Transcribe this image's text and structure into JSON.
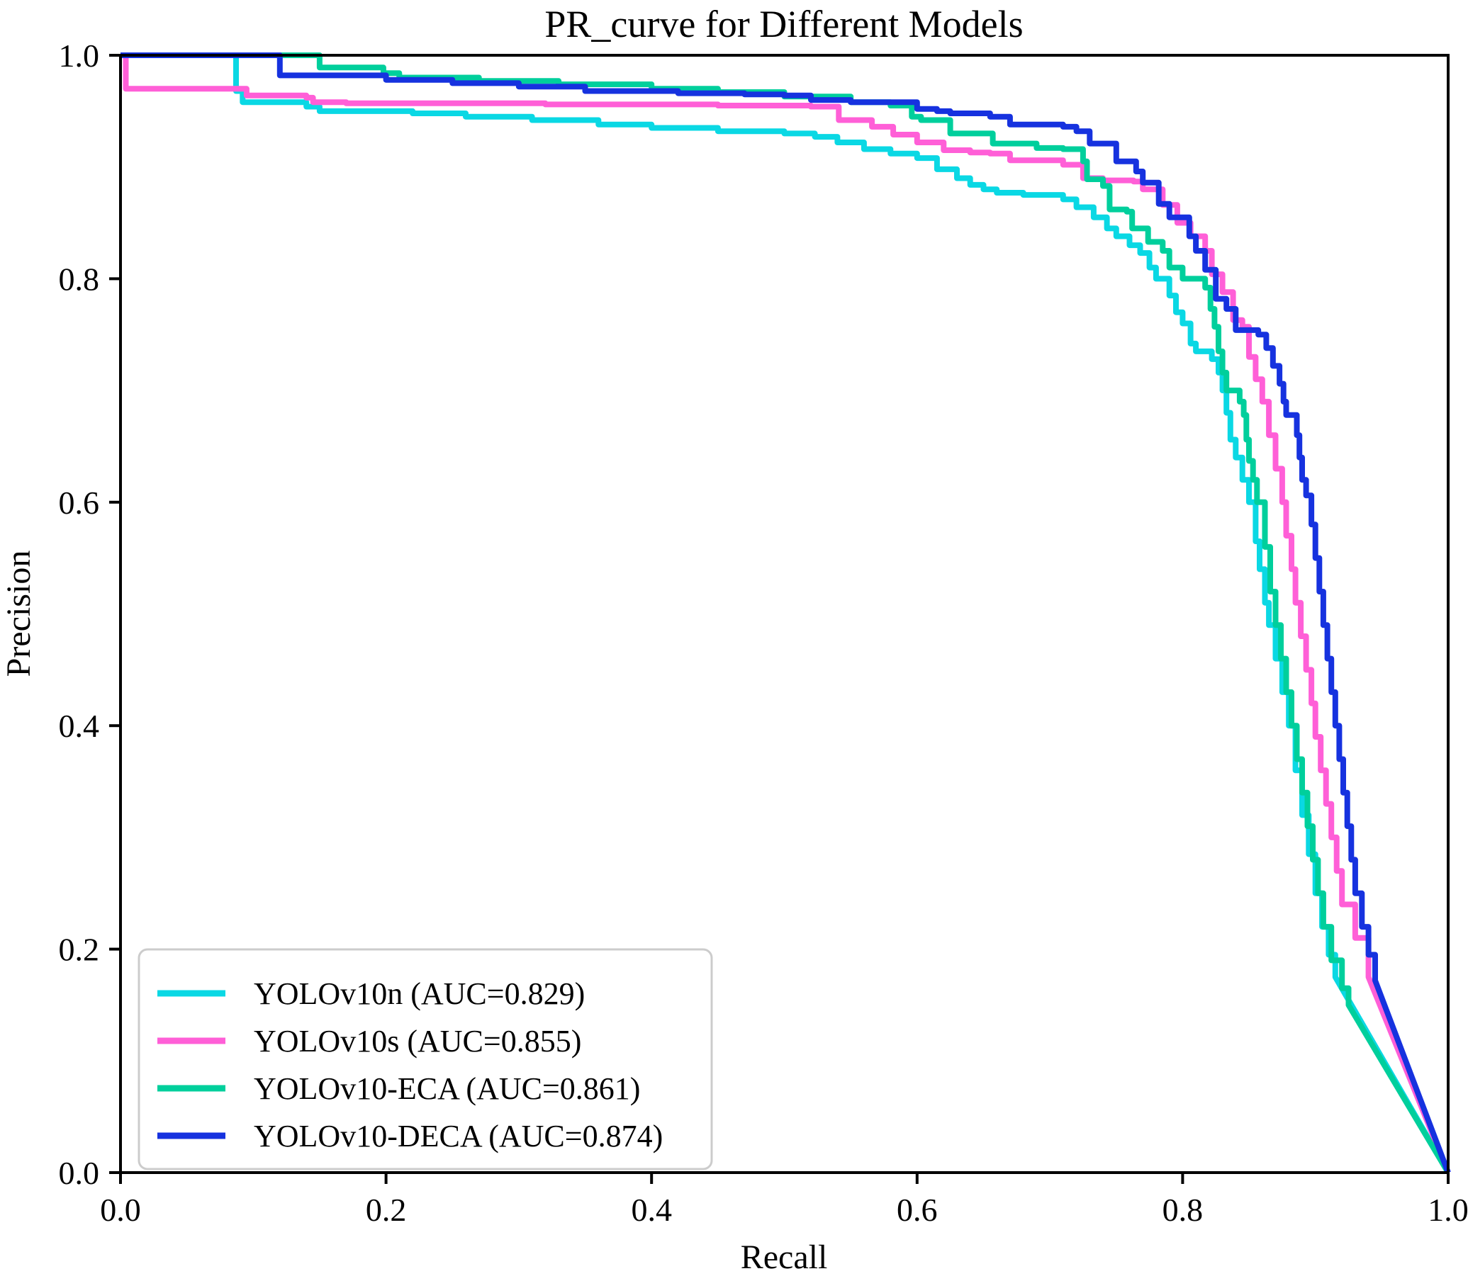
{
  "chart": {
    "title": "PR_curve for Different Models",
    "xlabel": "Recall",
    "ylabel": "Precision"
  },
  "chart_data": {
    "type": "line",
    "title": "PR_curve for Different Models",
    "xlabel": "Recall",
    "ylabel": "Precision",
    "xlim": [
      0.0,
      1.0
    ],
    "ylim": [
      0.0,
      1.0
    ],
    "x_ticks": [
      {
        "v": 0.0,
        "label": "0.0"
      },
      {
        "v": 0.2,
        "label": "0.2"
      },
      {
        "v": 0.4,
        "label": "0.4"
      },
      {
        "v": 0.6,
        "label": "0.6"
      },
      {
        "v": 0.8,
        "label": "0.8"
      },
      {
        "v": 1.0,
        "label": "1.0"
      }
    ],
    "y_ticks": [
      {
        "v": 0.0,
        "label": "0.0"
      },
      {
        "v": 0.2,
        "label": "0.2"
      },
      {
        "v": 0.4,
        "label": "0.4"
      },
      {
        "v": 0.6,
        "label": "0.6"
      },
      {
        "v": 0.8,
        "label": "0.8"
      },
      {
        "v": 1.0,
        "label": "1.0"
      }
    ],
    "grid": false,
    "legend_position": "lower-left",
    "series": [
      {
        "name": "YOLOv10n (AUC=0.829)",
        "color": "#0ad8e4",
        "auc": 0.829,
        "tail_start": 0.915,
        "points": [
          [
            0.0,
            1.0
          ],
          [
            0.085,
            1.0
          ],
          [
            0.087,
            0.968
          ],
          [
            0.092,
            0.958
          ],
          [
            0.14,
            0.954
          ],
          [
            0.15,
            0.95
          ],
          [
            0.22,
            0.948
          ],
          [
            0.26,
            0.945
          ],
          [
            0.31,
            0.942
          ],
          [
            0.36,
            0.938
          ],
          [
            0.4,
            0.935
          ],
          [
            0.45,
            0.932
          ],
          [
            0.5,
            0.93
          ],
          [
            0.523,
            0.927
          ],
          [
            0.54,
            0.922
          ],
          [
            0.56,
            0.916
          ],
          [
            0.58,
            0.912
          ],
          [
            0.6,
            0.908
          ],
          [
            0.615,
            0.898
          ],
          [
            0.63,
            0.89
          ],
          [
            0.64,
            0.884
          ],
          [
            0.65,
            0.88
          ],
          [
            0.66,
            0.877
          ],
          [
            0.68,
            0.875
          ],
          [
            0.71,
            0.871
          ],
          [
            0.72,
            0.864
          ],
          [
            0.733,
            0.855
          ],
          [
            0.743,
            0.845
          ],
          [
            0.75,
            0.838
          ],
          [
            0.76,
            0.83
          ],
          [
            0.768,
            0.823
          ],
          [
            0.775,
            0.81
          ],
          [
            0.78,
            0.8
          ],
          [
            0.79,
            0.785
          ],
          [
            0.795,
            0.77
          ],
          [
            0.8,
            0.76
          ],
          [
            0.806,
            0.742
          ],
          [
            0.81,
            0.735
          ],
          [
            0.822,
            0.728
          ],
          [
            0.827,
            0.716
          ],
          [
            0.83,
            0.7
          ],
          [
            0.833,
            0.68
          ],
          [
            0.836,
            0.656
          ],
          [
            0.84,
            0.64
          ],
          [
            0.845,
            0.62
          ],
          [
            0.85,
            0.6
          ],
          [
            0.855,
            0.565
          ],
          [
            0.858,
            0.54
          ],
          [
            0.862,
            0.51
          ],
          [
            0.865,
            0.49
          ],
          [
            0.87,
            0.46
          ],
          [
            0.875,
            0.43
          ],
          [
            0.88,
            0.4
          ],
          [
            0.885,
            0.36
          ],
          [
            0.89,
            0.32
          ],
          [
            0.895,
            0.285
          ],
          [
            0.9,
            0.25
          ],
          [
            0.905,
            0.22
          ],
          [
            0.91,
            0.195
          ],
          [
            0.915,
            0.175
          ],
          [
            1.0,
            0.0
          ]
        ]
      },
      {
        "name": "YOLOv10s (AUC=0.855)",
        "color": "#ff5fd7",
        "auc": 0.855,
        "tail_start": 0.94,
        "points": [
          [
            0.0,
            1.0
          ],
          [
            0.003,
            1.0
          ],
          [
            0.004,
            0.97
          ],
          [
            0.09,
            0.97
          ],
          [
            0.095,
            0.964
          ],
          [
            0.14,
            0.962
          ],
          [
            0.145,
            0.958
          ],
          [
            0.17,
            0.957
          ],
          [
            0.32,
            0.956
          ],
          [
            0.45,
            0.955
          ],
          [
            0.52,
            0.954
          ],
          [
            0.541,
            0.942
          ],
          [
            0.566,
            0.936
          ],
          [
            0.582,
            0.929
          ],
          [
            0.6,
            0.922
          ],
          [
            0.62,
            0.915
          ],
          [
            0.64,
            0.913
          ],
          [
            0.655,
            0.912
          ],
          [
            0.67,
            0.906
          ],
          [
            0.71,
            0.902
          ],
          [
            0.725,
            0.89
          ],
          [
            0.74,
            0.888
          ],
          [
            0.763,
            0.887
          ],
          [
            0.77,
            0.88
          ],
          [
            0.785,
            0.866
          ],
          [
            0.796,
            0.85
          ],
          [
            0.806,
            0.838
          ],
          [
            0.817,
            0.825
          ],
          [
            0.822,
            0.804
          ],
          [
            0.83,
            0.788
          ],
          [
            0.838,
            0.763
          ],
          [
            0.845,
            0.757
          ],
          [
            0.85,
            0.73
          ],
          [
            0.855,
            0.71
          ],
          [
            0.86,
            0.69
          ],
          [
            0.865,
            0.66
          ],
          [
            0.87,
            0.63
          ],
          [
            0.875,
            0.6
          ],
          [
            0.878,
            0.57
          ],
          [
            0.882,
            0.54
          ],
          [
            0.885,
            0.51
          ],
          [
            0.889,
            0.48
          ],
          [
            0.893,
            0.45
          ],
          [
            0.897,
            0.42
          ],
          [
            0.9,
            0.39
          ],
          [
            0.904,
            0.36
          ],
          [
            0.908,
            0.33
          ],
          [
            0.912,
            0.3
          ],
          [
            0.916,
            0.27
          ],
          [
            0.92,
            0.24
          ],
          [
            0.93,
            0.21
          ],
          [
            0.94,
            0.175
          ],
          [
            1.0,
            0.0
          ]
        ]
      },
      {
        "name": "YOLOv10-ECA (AUC=0.861)",
        "color": "#00cf9c",
        "auc": 0.861,
        "tail_start": 0.925,
        "points": [
          [
            0.0,
            1.0
          ],
          [
            0.148,
            1.0
          ],
          [
            0.15,
            0.989
          ],
          [
            0.198,
            0.984
          ],
          [
            0.21,
            0.98
          ],
          [
            0.27,
            0.977
          ],
          [
            0.33,
            0.974
          ],
          [
            0.4,
            0.97
          ],
          [
            0.45,
            0.967
          ],
          [
            0.5,
            0.963
          ],
          [
            0.55,
            0.958
          ],
          [
            0.58,
            0.955
          ],
          [
            0.596,
            0.945
          ],
          [
            0.603,
            0.942
          ],
          [
            0.625,
            0.93
          ],
          [
            0.657,
            0.921
          ],
          [
            0.69,
            0.917
          ],
          [
            0.71,
            0.916
          ],
          [
            0.725,
            0.905
          ],
          [
            0.728,
            0.889
          ],
          [
            0.74,
            0.883
          ],
          [
            0.745,
            0.862
          ],
          [
            0.758,
            0.86
          ],
          [
            0.762,
            0.845
          ],
          [
            0.774,
            0.833
          ],
          [
            0.785,
            0.825
          ],
          [
            0.79,
            0.81
          ],
          [
            0.8,
            0.8
          ],
          [
            0.817,
            0.792
          ],
          [
            0.821,
            0.773
          ],
          [
            0.824,
            0.757
          ],
          [
            0.827,
            0.735
          ],
          [
            0.83,
            0.716
          ],
          [
            0.833,
            0.7
          ],
          [
            0.843,
            0.69
          ],
          [
            0.846,
            0.678
          ],
          [
            0.848,
            0.656
          ],
          [
            0.85,
            0.637
          ],
          [
            0.853,
            0.62
          ],
          [
            0.856,
            0.6
          ],
          [
            0.862,
            0.56
          ],
          [
            0.866,
            0.52
          ],
          [
            0.87,
            0.49
          ],
          [
            0.874,
            0.46
          ],
          [
            0.878,
            0.43
          ],
          [
            0.882,
            0.4
          ],
          [
            0.886,
            0.37
          ],
          [
            0.89,
            0.34
          ],
          [
            0.894,
            0.31
          ],
          [
            0.898,
            0.28
          ],
          [
            0.902,
            0.25
          ],
          [
            0.906,
            0.22
          ],
          [
            0.912,
            0.19
          ],
          [
            0.92,
            0.165
          ],
          [
            0.925,
            0.15
          ],
          [
            1.0,
            0.0
          ]
        ]
      },
      {
        "name": "YOLOv10-DECA (AUC=0.874)",
        "color": "#1632df",
        "auc": 0.874,
        "tail_start": 0.945,
        "points": [
          [
            0.0,
            1.0
          ],
          [
            0.118,
            1.0
          ],
          [
            0.12,
            0.982
          ],
          [
            0.19,
            0.982
          ],
          [
            0.2,
            0.978
          ],
          [
            0.25,
            0.975
          ],
          [
            0.3,
            0.972
          ],
          [
            0.35,
            0.968
          ],
          [
            0.42,
            0.966
          ],
          [
            0.47,
            0.965
          ],
          [
            0.5,
            0.964
          ],
          [
            0.52,
            0.96
          ],
          [
            0.55,
            0.958
          ],
          [
            0.6,
            0.952
          ],
          [
            0.615,
            0.95
          ],
          [
            0.625,
            0.948
          ],
          [
            0.655,
            0.945
          ],
          [
            0.67,
            0.938
          ],
          [
            0.71,
            0.936
          ],
          [
            0.72,
            0.932
          ],
          [
            0.73,
            0.921
          ],
          [
            0.75,
            0.905
          ],
          [
            0.765,
            0.896
          ],
          [
            0.77,
            0.886
          ],
          [
            0.782,
            0.867
          ],
          [
            0.79,
            0.855
          ],
          [
            0.805,
            0.838
          ],
          [
            0.81,
            0.825
          ],
          [
            0.817,
            0.808
          ],
          [
            0.825,
            0.782
          ],
          [
            0.833,
            0.773
          ],
          [
            0.84,
            0.754
          ],
          [
            0.857,
            0.75
          ],
          [
            0.863,
            0.738
          ],
          [
            0.868,
            0.722
          ],
          [
            0.873,
            0.706
          ],
          [
            0.876,
            0.69
          ],
          [
            0.878,
            0.678
          ],
          [
            0.886,
            0.66
          ],
          [
            0.888,
            0.64
          ],
          [
            0.89,
            0.62
          ],
          [
            0.893,
            0.606
          ],
          [
            0.897,
            0.58
          ],
          [
            0.9,
            0.55
          ],
          [
            0.903,
            0.52
          ],
          [
            0.906,
            0.49
          ],
          [
            0.909,
            0.46
          ],
          [
            0.912,
            0.43
          ],
          [
            0.915,
            0.4
          ],
          [
            0.918,
            0.37
          ],
          [
            0.921,
            0.34
          ],
          [
            0.924,
            0.31
          ],
          [
            0.927,
            0.28
          ],
          [
            0.93,
            0.25
          ],
          [
            0.935,
            0.22
          ],
          [
            0.94,
            0.195
          ],
          [
            0.945,
            0.172
          ],
          [
            1.0,
            0.0
          ]
        ]
      }
    ]
  },
  "legend": {
    "entries": [
      {
        "label": "YOLOv10n (AUC=0.829)",
        "color": "#0ad8e4"
      },
      {
        "label": "YOLOv10s (AUC=0.855)",
        "color": "#ff5fd7"
      },
      {
        "label": "YOLOv10-ECA (AUC=0.861)",
        "color": "#00cf9c"
      },
      {
        "label": "YOLOv10-DECA (AUC=0.874)",
        "color": "#1632df"
      }
    ]
  },
  "style_colors": {
    "axis": "#000000",
    "legend_border": "#cccccc",
    "background": "#ffffff"
  }
}
